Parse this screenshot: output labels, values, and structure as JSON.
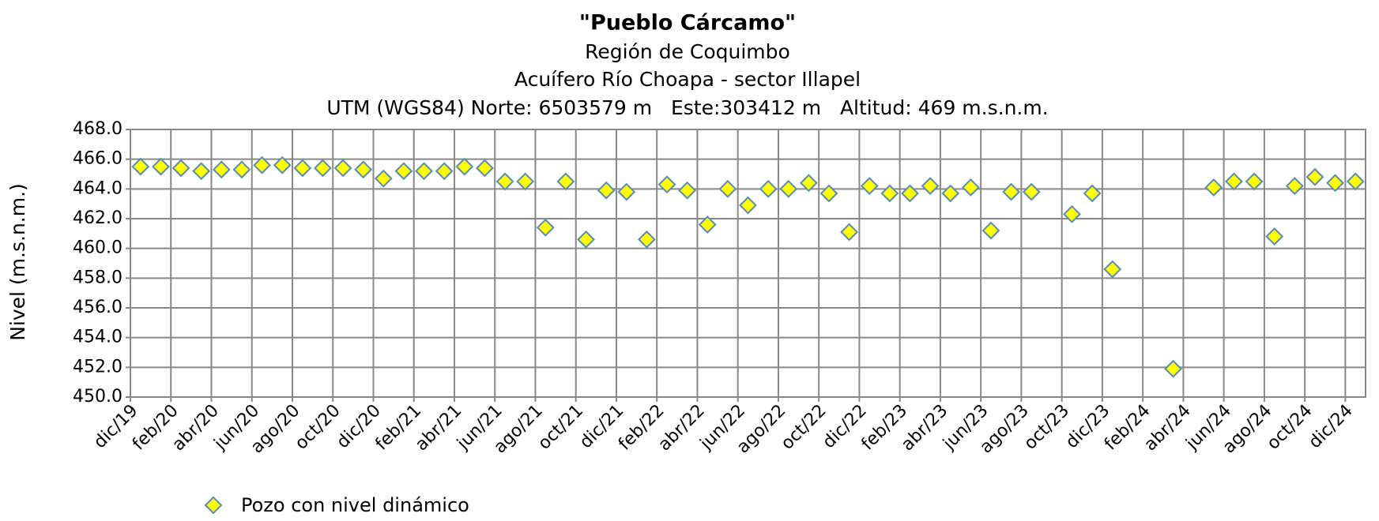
{
  "chart_data": {
    "type": "scatter",
    "title": "\"Pueblo Cárcamo\"",
    "subtitle": [
      "Región de Coquimbo",
      "Acuífero Río Choapa - sector Illapel",
      "UTM (WGS84) Norte: 6503579 m   Este:303412 m   Altitud: 469 m.s.n.m."
    ],
    "y_label": "Nivel (m.s.n.m.)",
    "categories": [
      "dic/19",
      null,
      "feb/20",
      null,
      "abr/20",
      null,
      "jun/20",
      null,
      "ago/20",
      null,
      "oct/20",
      null,
      "dic/20",
      null,
      "feb/21",
      null,
      "abr/21",
      null,
      "jun/21",
      null,
      "ago/21",
      null,
      "oct/21",
      null,
      "dic/21",
      null,
      "feb/22",
      null,
      "abr/22",
      null,
      "jun/22",
      null,
      "ago/22",
      null,
      "oct/22",
      null,
      "dic/22",
      null,
      "feb/23",
      null,
      "abr/23",
      null,
      "jun/23",
      null,
      "ago/23",
      null,
      "oct/23",
      null,
      "dic/23",
      null,
      "feb/24",
      null,
      "abr/24",
      null,
      "jun/24",
      null,
      "ago/24",
      null,
      "oct/24",
      null,
      "dic/24"
    ],
    "series": [
      {
        "name": "Pozo con nivel dinámico",
        "color": "#ffff00",
        "edge_color": "#5b8ab5",
        "values": [
          465.5,
          465.5,
          465.4,
          465.2,
          465.3,
          465.3,
          465.6,
          465.6,
          465.4,
          465.4,
          465.4,
          465.3,
          464.7,
          465.2,
          465.2,
          465.2,
          465.5,
          465.4,
          464.5,
          464.5,
          461.4,
          464.5,
          460.6,
          463.9,
          463.8,
          460.6,
          464.3,
          463.9,
          461.6,
          464.0,
          462.9,
          464.0,
          464.0,
          464.4,
          463.7,
          461.1,
          464.2,
          463.7,
          463.7,
          464.2,
          463.7,
          464.1,
          461.2,
          463.8,
          463.8,
          null,
          462.3,
          463.7,
          458.6,
          null,
          null,
          451.9,
          null,
          464.1,
          464.5,
          464.5,
          460.8,
          464.2,
          464.8,
          464.4,
          464.5
        ]
      }
    ],
    "ylim": [
      450,
      468
    ],
    "yticks": [
      {
        "value": 450,
        "label": "450.0"
      },
      {
        "value": 452,
        "label": "452.0"
      },
      {
        "value": 454,
        "label": "454.0"
      },
      {
        "value": 456,
        "label": "456.0"
      },
      {
        "value": 458,
        "label": "458.0"
      },
      {
        "value": 460,
        "label": "460.0"
      },
      {
        "value": 462,
        "label": "462.0"
      },
      {
        "value": 464,
        "label": "464.0"
      },
      {
        "value": 466,
        "label": "466.0"
      },
      {
        "value": 468,
        "label": "468.0"
      }
    ],
    "grid": true
  }
}
